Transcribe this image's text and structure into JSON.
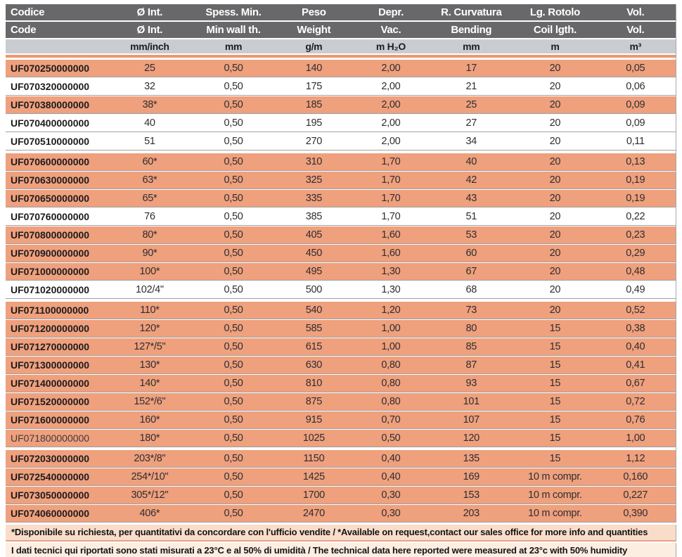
{
  "colors": {
    "header_bg": "#68686A",
    "units_bg": "#C9CDD2",
    "row_highlight": "#EFA07D",
    "row_plain": "#FFFFFF",
    "accent_divider": "#EC9872",
    "row_separator": "#9EA1A4",
    "note1_bg": "#F9DDCA",
    "note2_bg": "#FDEEE2"
  },
  "table": {
    "columns": [
      {
        "it": "Codice",
        "en": "Code",
        "unit": ""
      },
      {
        "it": "Ø Int.",
        "en": "Ø Int.",
        "unit": "mm/inch"
      },
      {
        "it": "Spess. Min.",
        "en": "Min wall th.",
        "unit": "mm"
      },
      {
        "it": "Peso",
        "en": "Weight",
        "unit": "g/m"
      },
      {
        "it": "Depr.",
        "en": "Vac.",
        "unit": "m H₂O"
      },
      {
        "it": "R. Curvatura",
        "en": "Bending",
        "unit": "mm"
      },
      {
        "it": "Lg. Rotolo",
        "en": "Coil lgth.",
        "unit": "m"
      },
      {
        "it": "Vol.",
        "en": "Vol.",
        "unit": "m³"
      }
    ],
    "rows": [
      {
        "code": "UF070250000000",
        "dia": "25",
        "wall": "0,50",
        "weight": "140",
        "vac": "2,00",
        "bend": "17",
        "coil": "20",
        "vol": "0,05",
        "highlight": true
      },
      {
        "code": "UF070320000000",
        "dia": "32",
        "wall": "0,50",
        "weight": "175",
        "vac": "2,00",
        "bend": "21",
        "coil": "20",
        "vol": "0,06",
        "highlight": false
      },
      {
        "code": "UF070380000000",
        "dia": "38*",
        "wall": "0,50",
        "weight": "185",
        "vac": "2,00",
        "bend": "25",
        "coil": "20",
        "vol": "0,09",
        "highlight": true
      },
      {
        "code": "UF070400000000",
        "dia": "40",
        "wall": "0,50",
        "weight": "195",
        "vac": "2,00",
        "bend": "27",
        "coil": "20",
        "vol": "0,09",
        "highlight": false
      },
      {
        "code": "UF070510000000",
        "dia": "51",
        "wall": "0,50",
        "weight": "270",
        "vac": "2,00",
        "bend": "34",
        "coil": "20",
        "vol": "0,11",
        "highlight": false
      },
      {
        "code": "UF070600000000",
        "dia": "60*",
        "wall": "0,50",
        "weight": "310",
        "vac": "1,70",
        "bend": "40",
        "coil": "20",
        "vol": "0,13",
        "highlight": true,
        "gap_before": true
      },
      {
        "code": "UF070630000000",
        "dia": "63*",
        "wall": "0,50",
        "weight": "325",
        "vac": "1,70",
        "bend": "42",
        "coil": "20",
        "vol": "0,19",
        "highlight": true
      },
      {
        "code": "UF070650000000",
        "dia": "65*",
        "wall": "0,50",
        "weight": "335",
        "vac": "1,70",
        "bend": "43",
        "coil": "20",
        "vol": "0,19",
        "highlight": true
      },
      {
        "code": "UF070760000000",
        "dia": "76",
        "wall": "0,50",
        "weight": "385",
        "vac": "1,70",
        "bend": "51",
        "coil": "20",
        "vol": "0,22",
        "highlight": false
      },
      {
        "code": "UF070800000000",
        "dia": "80*",
        "wall": "0,50",
        "weight": "405",
        "vac": "1,60",
        "bend": "53",
        "coil": "20",
        "vol": "0,23",
        "highlight": true
      },
      {
        "code": "UF070900000000",
        "dia": "90*",
        "wall": "0,50",
        "weight": "450",
        "vac": "1,60",
        "bend": "60",
        "coil": "20",
        "vol": "0,29",
        "highlight": true
      },
      {
        "code": "UF071000000000",
        "dia": "100*",
        "wall": "0,50",
        "weight": "495",
        "vac": "1,30",
        "bend": "67",
        "coil": "20",
        "vol": "0,48",
        "highlight": true
      },
      {
        "code": "UF071020000000",
        "dia": "102/4\"",
        "wall": "0,50",
        "weight": "500",
        "vac": "1,30",
        "bend": "68",
        "coil": "20",
        "vol": "0,49",
        "highlight": false
      },
      {
        "code": "UF071100000000",
        "dia": "110*",
        "wall": "0,50",
        "weight": "540",
        "vac": "1,20",
        "bend": "73",
        "coil": "20",
        "vol": "0,52",
        "highlight": true,
        "gap_before": true
      },
      {
        "code": "UF071200000000",
        "dia": "120*",
        "wall": "0,50",
        "weight": "585",
        "vac": "1,00",
        "bend": "80",
        "coil": "15",
        "vol": "0,38",
        "highlight": true
      },
      {
        "code": "UF071270000000",
        "dia": "127*/5\"",
        "wall": "0,50",
        "weight": "615",
        "vac": "1,00",
        "bend": "85",
        "coil": "15",
        "vol": "0,40",
        "highlight": true
      },
      {
        "code": "UF071300000000",
        "dia": "130*",
        "wall": "0,50",
        "weight": "630",
        "vac": "0,80",
        "bend": "87",
        "coil": "15",
        "vol": "0,41",
        "highlight": true
      },
      {
        "code": "UF071400000000",
        "dia": "140*",
        "wall": "0,50",
        "weight": "810",
        "vac": "0,80",
        "bend": "93",
        "coil": "15",
        "vol": "0,67",
        "highlight": true
      },
      {
        "code": "UF071520000000",
        "dia": "152*/6\"",
        "wall": "0,50",
        "weight": "875",
        "vac": "0,80",
        "bend": "101",
        "coil": "15",
        "vol": "0,72",
        "highlight": true
      },
      {
        "code": "UF071600000000",
        "dia": "160*",
        "wall": "0,50",
        "weight": "915",
        "vac": "0,70",
        "bend": "107",
        "coil": "15",
        "vol": "0,76",
        "highlight": true
      },
      {
        "code": "UF071800000000",
        "dia": "180*",
        "wall": "0,50",
        "weight": "1025",
        "vac": "0,50",
        "bend": "120",
        "coil": "15",
        "vol": "1,00",
        "highlight": true,
        "code_bold": false
      },
      {
        "code": "UF072030000000",
        "dia": "203*/8\"",
        "wall": "0,50",
        "weight": "1150",
        "vac": "0,40",
        "bend": "135",
        "coil": "15",
        "vol": "1,12",
        "highlight": true,
        "gap_before": true
      },
      {
        "code": "UF072540000000",
        "dia": "254*/10\"",
        "wall": "0,50",
        "weight": "1425",
        "vac": "0,40",
        "bend": "169",
        "coil": "10 m compr.",
        "vol": "0,160",
        "highlight": true
      },
      {
        "code": "UF073050000000",
        "dia": "305*/12\"",
        "wall": "0,50",
        "weight": "1700",
        "vac": "0,30",
        "bend": "153",
        "coil": "10 m compr.",
        "vol": "0,227",
        "highlight": true
      },
      {
        "code": "UF074060000000",
        "dia": "406*",
        "wall": "0,50",
        "weight": "2470",
        "vac": "0,30",
        "bend": "203",
        "coil": "10 m compr.",
        "vol": "0,390",
        "highlight": true
      }
    ]
  },
  "notes": [
    "*Disponibile su richiesta, per quantitativi da concordare con l'ufficio vendite / *Available on request,contact our sales office for more info and quantities",
    "I dati tecnici qui riportati sono stati misurati a 23°C e al 50% di umidità / The technical data here reported were measured at 23°c with 50% humidity"
  ]
}
